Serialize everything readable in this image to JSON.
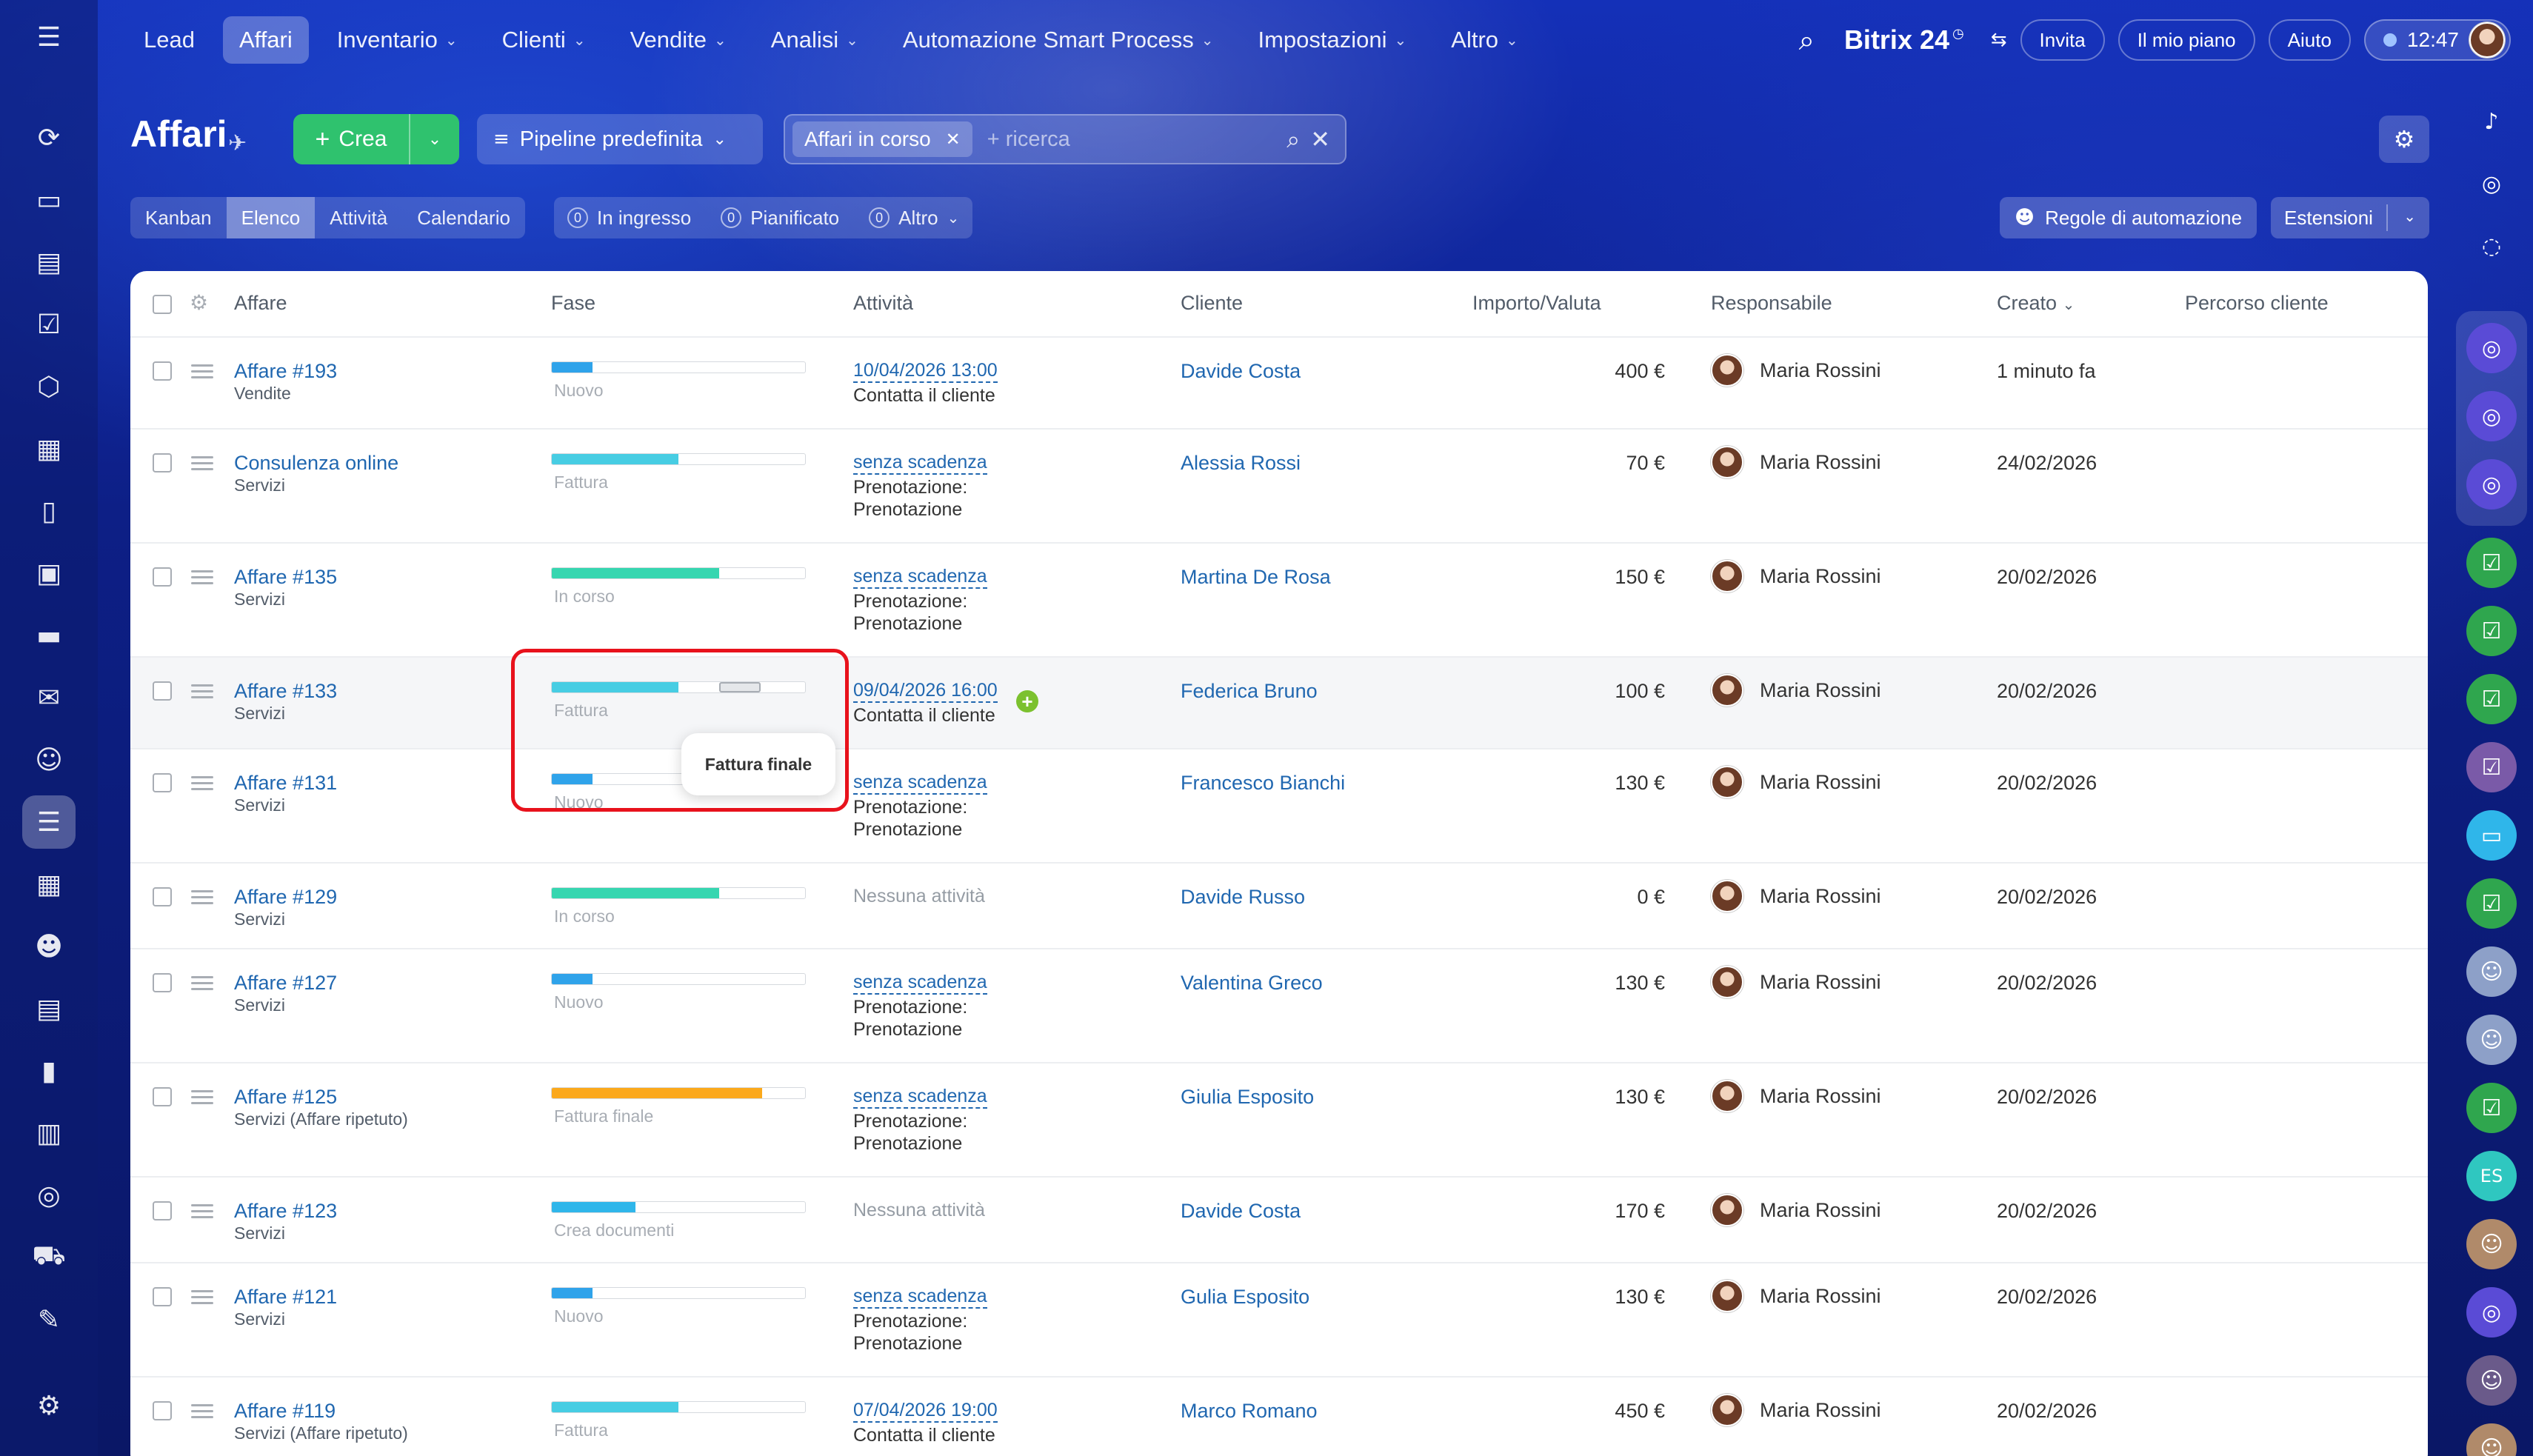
{
  "nav": {
    "items": [
      {
        "label": "Lead",
        "chevron": false,
        "active": false
      },
      {
        "label": "Affari",
        "chevron": false,
        "active": true
      },
      {
        "label": "Inventario",
        "chevron": true,
        "active": false
      },
      {
        "label": "Clienti",
        "chevron": true,
        "active": false
      },
      {
        "label": "Vendite",
        "chevron": true,
        "active": false
      },
      {
        "label": "Analisi",
        "chevron": true,
        "active": false
      },
      {
        "label": "Automazione Smart Process",
        "chevron": true,
        "active": false
      },
      {
        "label": "Impostazioni",
        "chevron": true,
        "active": false
      },
      {
        "label": "Altro",
        "chevron": true,
        "active": false
      }
    ],
    "brand": "Bitrix 24",
    "invite": "Invita",
    "plan": "Il mio piano",
    "help": "Aiuto",
    "clock": "12:47"
  },
  "page": {
    "title": "Affari",
    "create_label": "Crea",
    "pipeline_label": "Pipeline predefinita",
    "filter_chip": "Affari in corso",
    "search_placeholder": "+ ricerca"
  },
  "views": {
    "tabs": [
      {
        "label": "Kanban",
        "active": false
      },
      {
        "label": "Elenco",
        "active": true
      },
      {
        "label": "Attività",
        "active": false
      },
      {
        "label": "Calendario",
        "active": false
      }
    ],
    "counters": [
      {
        "count": "0",
        "label": "In ingresso"
      },
      {
        "count": "0",
        "label": "Pianificato"
      },
      {
        "count": "0",
        "label": "Altro"
      }
    ],
    "rules_label": "Regole di automazione",
    "extensions_label": "Estensioni"
  },
  "table": {
    "headers": {
      "deal": "Affare",
      "stage": "Fase",
      "activity": "Attività",
      "client": "Cliente",
      "amount": "Importo/Valuta",
      "responsible": "Responsabile",
      "created": "Creato",
      "journey": "Percorso cliente"
    },
    "rows": [
      {
        "title": "Affare #193",
        "sub": "Vendite",
        "stage": "Nuovo",
        "stage_fill": 0.16,
        "stage_color": "#2fa3ea",
        "act_date": "10/04/2026 13:00",
        "act_lines": [
          "Contatta il cliente"
        ],
        "act_none": "",
        "client": "Davide Costa",
        "amount": "400 €",
        "resp": "Maria Rossini",
        "created": "1 minuto fa"
      },
      {
        "title": "Consulenza online",
        "sub": "Servizi",
        "stage": "Fattura",
        "stage_fill": 0.5,
        "stage_color": "#47cde3",
        "act_date": "senza scadenza",
        "act_lines": [
          "Prenotazione:",
          "Prenotazione"
        ],
        "act_none": "",
        "client": "Alessia Rossi",
        "amount": "70 €",
        "resp": "Maria Rossini",
        "created": "24/02/2026"
      },
      {
        "title": "Affare #135",
        "sub": "Servizi",
        "stage": "In corso",
        "stage_fill": 0.66,
        "stage_color": "#36d6b0",
        "act_date": "senza scadenza",
        "act_lines": [
          "Prenotazione:",
          "Prenotazione"
        ],
        "act_none": "",
        "client": "Martina De Rosa",
        "amount": "150 €",
        "resp": "Maria Rossini",
        "created": "20/02/2026"
      },
      {
        "title": "Affare #133",
        "sub": "Servizi",
        "stage": "Fattura",
        "stage_fill": 0.5,
        "stage_color": "#47cde3",
        "act_date": "09/04/2026 16:00",
        "act_lines": [
          "Contatta il cliente"
        ],
        "act_none": "",
        "client": "Federica Bruno",
        "amount": "100 €",
        "resp": "Maria Rossini",
        "created": "20/02/2026"
      },
      {
        "title": "Affare #131",
        "sub": "Servizi",
        "stage": "Nuovo",
        "stage_fill": 0.16,
        "stage_color": "#2fa3ea",
        "act_date": "senza scadenza",
        "act_lines": [
          "Prenotazione:",
          "Prenotazione"
        ],
        "act_none": "",
        "client": "Francesco Bianchi",
        "amount": "130 €",
        "resp": "Maria Rossini",
        "created": "20/02/2026"
      },
      {
        "title": "Affare #129",
        "sub": "Servizi",
        "stage": "In corso",
        "stage_fill": 0.66,
        "stage_color": "#36d6b0",
        "act_date": "",
        "act_lines": [],
        "act_none": "Nessuna attività",
        "client": "Davide Russo",
        "amount": "0 €",
        "resp": "Maria Rossini",
        "created": "20/02/2026"
      },
      {
        "title": "Affare #127",
        "sub": "Servizi",
        "stage": "Nuovo",
        "stage_fill": 0.16,
        "stage_color": "#2fa3ea",
        "act_date": "senza scadenza",
        "act_lines": [
          "Prenotazione:",
          "Prenotazione"
        ],
        "act_none": "",
        "client": "Valentina Greco",
        "amount": "130 €",
        "resp": "Maria Rossini",
        "created": "20/02/2026"
      },
      {
        "title": "Affare #125",
        "sub": "Servizi (Affare ripetuto)",
        "stage": "Fattura finale",
        "stage_fill": 0.83,
        "stage_color": "#fba91c",
        "act_date": "senza scadenza",
        "act_lines": [
          "Prenotazione:",
          "Prenotazione"
        ],
        "act_none": "",
        "client": "Giulia Esposito",
        "amount": "130 €",
        "resp": "Maria Rossini",
        "created": "20/02/2026"
      },
      {
        "title": "Affare #123",
        "sub": "Servizi",
        "stage": "Crea documenti",
        "stage_fill": 0.33,
        "stage_color": "#2fb6ea",
        "act_date": "",
        "act_lines": [],
        "act_none": "Nessuna attività",
        "client": "Davide Costa",
        "amount": "170 €",
        "resp": "Maria Rossini",
        "created": "20/02/2026"
      },
      {
        "title": "Affare #121",
        "sub": "Servizi",
        "stage": "Nuovo",
        "stage_fill": 0.16,
        "stage_color": "#2fa3ea",
        "act_date": "senza scadenza",
        "act_lines": [
          "Prenotazione:",
          "Prenotazione"
        ],
        "act_none": "",
        "client": "Gulia Esposito",
        "amount": "130 €",
        "resp": "Maria Rossini",
        "created": "20/02/2026"
      },
      {
        "title": "Affare #119",
        "sub": "Servizi (Affare ripetuto)",
        "stage": "Fattura",
        "stage_fill": 0.5,
        "stage_color": "#47cde3",
        "act_date": "07/04/2026 19:00",
        "act_lines": [
          "Contatta il cliente"
        ],
        "act_none": "",
        "client": "Marco Romano",
        "amount": "450 €",
        "resp": "Maria Rossini",
        "created": "20/02/2026"
      }
    ]
  },
  "tooltip": {
    "text": "Fattura finale"
  },
  "rightbar": {
    "initials": "ES"
  }
}
